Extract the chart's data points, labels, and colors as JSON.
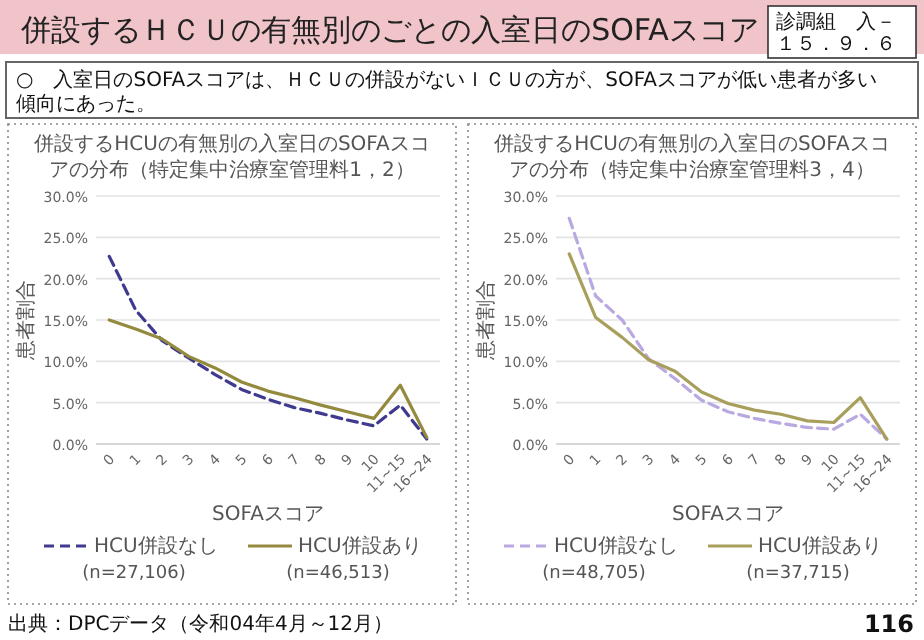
{
  "chart_data": [
    {
      "type": "other",
      "title": "併設するＨＣＵの有無別のごとの入室日のSOFAスコア",
      "subtitle": "○　入室日のSOFAスコアは、ＨＣＵの併設がないＩＣＵの方が、SOFAスコアが低い患者が多い傾向にあった。",
      "annotations": [
        "診調組　入－１５．９．６",
        "出典：DPCデータ（令和04年4月～12月）",
        "116"
      ]
    },
    {
      "type": "line",
      "title": "併設するHCUの有無別の入室日のSOFAスコアの分布（特定集中治療室管理料1，2）",
      "xlabel": "SOFAスコア",
      "ylabel": "患者割合",
      "categories": [
        "0",
        "1",
        "2",
        "3",
        "4",
        "5",
        "6",
        "7",
        "8",
        "9",
        "10",
        "11~15",
        "16~24"
      ],
      "ylim": [
        0,
        30
      ],
      "yticks": [
        {
          "value": 0,
          "label": "0.0%"
        },
        {
          "value": 5,
          "label": "5.0%"
        },
        {
          "value": 10,
          "label": "10.0%"
        },
        {
          "value": 15,
          "label": "15.0%"
        },
        {
          "value": 20,
          "label": "20.0%"
        },
        {
          "value": 25,
          "label": "25.0%"
        },
        {
          "value": 30,
          "label": "30.0%"
        }
      ],
      "grid": "y",
      "legend": "bottom",
      "marker": "none",
      "series": [
        {
          "name": "HCU併設なし\n(n=27,106)",
          "color": "#3f3a8f",
          "line_style": "dashed",
          "values": [
            22.7,
            16.2,
            12.5,
            10.4,
            8.4,
            6.6,
            5.4,
            4.4,
            3.7,
            2.9,
            2.2,
            4.7,
            0.6
          ]
        },
        {
          "name": "HCU併設あり\n(n=46,513)",
          "color": "#948a3e",
          "line_style": "solid",
          "values": [
            15.0,
            13.9,
            12.7,
            10.6,
            9.2,
            7.5,
            6.4,
            5.6,
            4.7,
            3.9,
            3.1,
            7.1,
            0.8
          ]
        }
      ]
    },
    {
      "type": "line",
      "title": "併設するHCUの有無別の入室日のSOFAスコアの分布（特定集中治療室管理料3，4）",
      "xlabel": "SOFAスコア",
      "ylabel": "患者割合",
      "categories": [
        "0",
        "1",
        "2",
        "3",
        "4",
        "5",
        "6",
        "7",
        "8",
        "9",
        "10",
        "11~15",
        "16~24"
      ],
      "ylim": [
        0,
        30
      ],
      "yticks": [
        {
          "value": 0,
          "label": "0.0%"
        },
        {
          "value": 5,
          "label": "5.0%"
        },
        {
          "value": 10,
          "label": "10.0%"
        },
        {
          "value": 15,
          "label": "15.0%"
        },
        {
          "value": 20,
          "label": "20.0%"
        },
        {
          "value": 25,
          "label": "25.0%"
        },
        {
          "value": 30,
          "label": "30.0%"
        }
      ],
      "grid": "y",
      "legend": "bottom",
      "marker": "none",
      "series": [
        {
          "name": "HCU併設なし\n(n=48,705)",
          "color": "#b9a9e0",
          "line_style": "dashed",
          "values": [
            27.3,
            17.9,
            15.0,
            10.3,
            7.9,
            5.3,
            3.9,
            3.1,
            2.5,
            2.0,
            1.8,
            3.6,
            0.6
          ]
        },
        {
          "name": "HCU併設あり\n(n=37,715)",
          "color": "#a99f5c",
          "line_style": "solid",
          "values": [
            23.0,
            15.3,
            12.9,
            10.2,
            8.8,
            6.3,
            4.9,
            4.1,
            3.6,
            2.8,
            2.6,
            5.6,
            0.6
          ]
        }
      ]
    }
  ]
}
